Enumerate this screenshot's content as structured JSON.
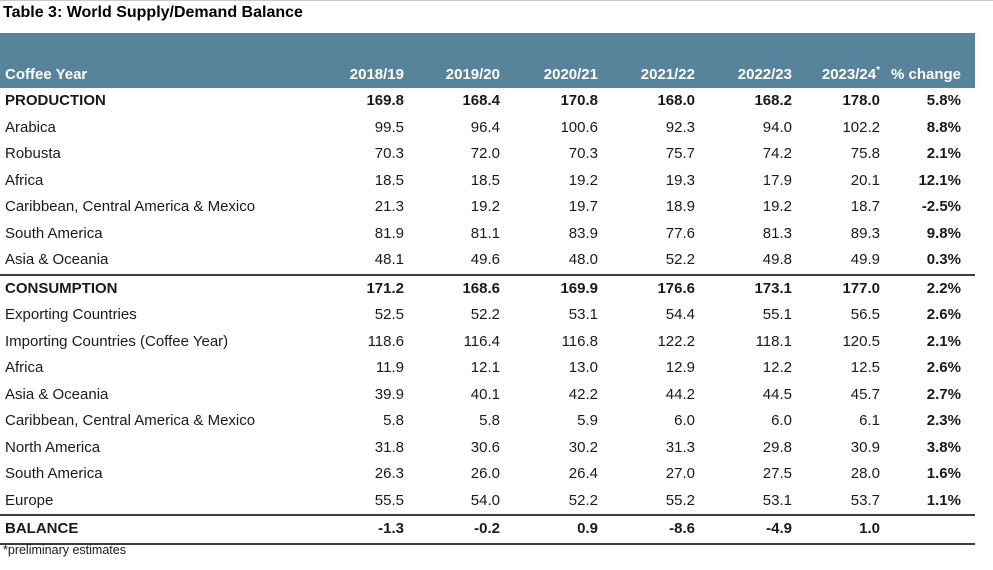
{
  "page": {
    "title": "Table 3: World Supply/Demand Balance",
    "footnote": "*preliminary estimates"
  },
  "colors": {
    "header_bg": "#57839B",
    "header_text": "#FFFFFF",
    "body_text": "#1A1A1A",
    "separator_line": "#3D3D3D"
  },
  "units_note": "values shown as printed in the table",
  "table": {
    "columns": [
      {
        "label": "Coffee Year",
        "sup": ""
      },
      {
        "label": "2018/19",
        "sup": ""
      },
      {
        "label": "2019/20",
        "sup": ""
      },
      {
        "label": "2020/21",
        "sup": ""
      },
      {
        "label": "2021/22",
        "sup": ""
      },
      {
        "label": "2022/23",
        "sup": ""
      },
      {
        "label": "2023/24",
        "sup": "*"
      },
      {
        "label": "% change",
        "sup": ""
      }
    ],
    "rows": [
      {
        "label": "PRODUCTION",
        "values": [
          "169.8",
          "168.4",
          "170.8",
          "168.0",
          "168.2",
          "178.0"
        ],
        "pct_change": "5.8%",
        "bold": true,
        "separator_below": false
      },
      {
        "label": "Arabica",
        "values": [
          "99.5",
          "96.4",
          "100.6",
          "92.3",
          "94.0",
          "102.2"
        ],
        "pct_change": "8.8%",
        "bold": false,
        "separator_below": false
      },
      {
        "label": "Robusta",
        "values": [
          "70.3",
          "72.0",
          "70.3",
          "75.7",
          "74.2",
          "75.8"
        ],
        "pct_change": "2.1%",
        "bold": false,
        "separator_below": false
      },
      {
        "label": "Africa",
        "values": [
          "18.5",
          "18.5",
          "19.2",
          "19.3",
          "17.9",
          "20.1"
        ],
        "pct_change": "12.1%",
        "bold": false,
        "separator_below": false
      },
      {
        "label": "Caribbean, Central America & Mexico",
        "values": [
          "21.3",
          "19.2",
          "19.7",
          "18.9",
          "19.2",
          "18.7"
        ],
        "pct_change": "-2.5%",
        "bold": false,
        "separator_below": false
      },
      {
        "label": "South America",
        "values": [
          "81.9",
          "81.1",
          "83.9",
          "77.6",
          "81.3",
          "89.3"
        ],
        "pct_change": "9.8%",
        "bold": false,
        "separator_below": false
      },
      {
        "label": "Asia & Oceania",
        "values": [
          "48.1",
          "49.6",
          "48.0",
          "52.2",
          "49.8",
          "49.9"
        ],
        "pct_change": "0.3%",
        "bold": false,
        "separator_below": true
      },
      {
        "label": "CONSUMPTION",
        "values": [
          "171.2",
          "168.6",
          "169.9",
          "176.6",
          "173.1",
          "177.0"
        ],
        "pct_change": "2.2%",
        "bold": true,
        "separator_below": false
      },
      {
        "label": "Exporting Countries",
        "values": [
          "52.5",
          "52.2",
          "53.1",
          "54.4",
          "55.1",
          "56.5"
        ],
        "pct_change": "2.6%",
        "bold": false,
        "separator_below": false
      },
      {
        "label": "Importing Countries (Coffee Year)",
        "values": [
          "118.6",
          "116.4",
          "116.8",
          "122.2",
          "118.1",
          "120.5"
        ],
        "pct_change": "2.1%",
        "bold": false,
        "separator_below": false
      },
      {
        "label": "Africa",
        "values": [
          "11.9",
          "12.1",
          "13.0",
          "12.9",
          "12.2",
          "12.5"
        ],
        "pct_change": "2.6%",
        "bold": false,
        "separator_below": false
      },
      {
        "label": "Asia & Oceania",
        "values": [
          "39.9",
          "40.1",
          "42.2",
          "44.2",
          "44.5",
          "45.7"
        ],
        "pct_change": "2.7%",
        "bold": false,
        "separator_below": false
      },
      {
        "label": "Caribbean, Central America & Mexico",
        "values": [
          "5.8",
          "5.8",
          "5.9",
          "6.0",
          "6.0",
          "6.1"
        ],
        "pct_change": "2.3%",
        "bold": false,
        "separator_below": false
      },
      {
        "label": "North America",
        "values": [
          "31.8",
          "30.6",
          "30.2",
          "31.3",
          "29.8",
          "30.9"
        ],
        "pct_change": "3.8%",
        "bold": false,
        "separator_below": false
      },
      {
        "label": "South America",
        "values": [
          "26.3",
          "26.0",
          "26.4",
          "27.0",
          "27.5",
          "28.0"
        ],
        "pct_change": "1.6%",
        "bold": false,
        "separator_below": false
      },
      {
        "label": "Europe",
        "values": [
          "55.5",
          "54.0",
          "52.2",
          "55.2",
          "53.1",
          "53.7"
        ],
        "pct_change": "1.1%",
        "bold": false,
        "separator_below": true
      },
      {
        "label": "BALANCE",
        "values": [
          "-1.3",
          "-0.2",
          "0.9",
          "-8.6",
          "-4.9",
          "1.0"
        ],
        "pct_change": "",
        "bold": true,
        "separator_below": true
      }
    ]
  }
}
